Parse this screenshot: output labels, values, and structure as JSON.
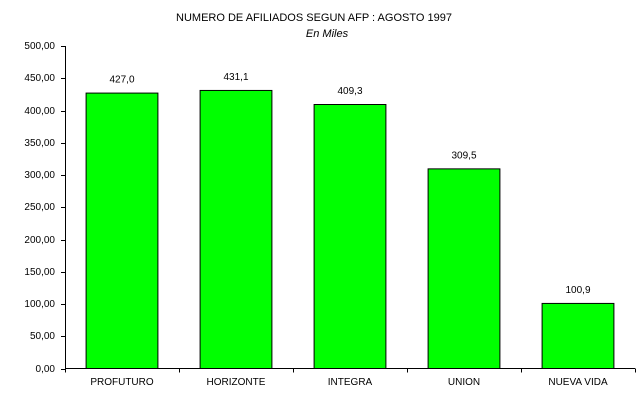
{
  "chart_data": {
    "type": "bar",
    "title": "NUMERO DE AFILIADOS SEGUN AFP :  AGOSTO 1997",
    "subtitle": "En Miles",
    "categories": [
      "PROFUTURO",
      "HORIZONTE",
      "INTEGRA",
      "UNION",
      "NUEVA VIDA"
    ],
    "values": [
      427.0,
      431.1,
      409.3,
      309.5,
      100.9
    ],
    "value_labels": [
      "427,0",
      "431,1",
      "409,3",
      "309,5",
      "100,9"
    ],
    "color": "#00ff00",
    "ylim": [
      0,
      500
    ],
    "yticks": [
      {
        "value": 0,
        "label": "0,00"
      },
      {
        "value": 50,
        "label": "50,00"
      },
      {
        "value": 100,
        "label": "100,00"
      },
      {
        "value": 150,
        "label": "150,00"
      },
      {
        "value": 200,
        "label": "200,00"
      },
      {
        "value": 250,
        "label": "250,00"
      },
      {
        "value": 300,
        "label": "300,00"
      },
      {
        "value": 350,
        "label": "350,00"
      },
      {
        "value": 400,
        "label": "400,00"
      },
      {
        "value": 450,
        "label": "450,00"
      },
      {
        "value": 500,
        "label": "500,00"
      }
    ],
    "grid": false
  }
}
